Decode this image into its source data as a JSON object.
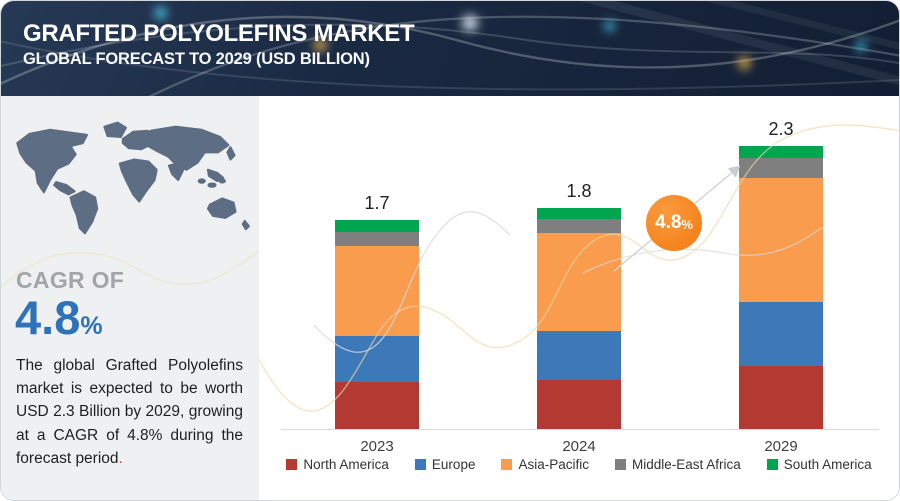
{
  "header": {
    "title": "GRAFTED POLYOLEFINS MARKET",
    "subtitle": "GLOBAL FORECAST TO 2029 (USD BILLION)"
  },
  "sidebar": {
    "cagr_label": "CAGR OF",
    "cagr_value": "4.8",
    "cagr_unit": "%",
    "description": "The global Grafted Polyolefins market is expected to be worth USD 2.3 Billion by 2029, growing at a CAGR of 4.8% during the forecast period",
    "description_end_mark": "."
  },
  "badge": {
    "value": "4.8",
    "unit": "%"
  },
  "chart_data": {
    "type": "bar",
    "stacked": true,
    "title": "Grafted Polyolefins Market, Global Forecast to 2029",
    "unit": "USD Billion",
    "categories": [
      "2023",
      "2024",
      "2029"
    ],
    "totals": [
      1.7,
      1.8,
      2.3
    ],
    "series": [
      {
        "name": "North America",
        "color": "#b23a32",
        "values": [
          0.38,
          0.4,
          0.51
        ]
      },
      {
        "name": "Europe",
        "color": "#3d79b8",
        "values": [
          0.38,
          0.4,
          0.52
        ]
      },
      {
        "name": "Asia-Pacific",
        "color": "#f99c4e",
        "values": [
          0.73,
          0.8,
          1.01
        ]
      },
      {
        "name": "Middle-East Africa",
        "color": "#7f7f7f",
        "values": [
          0.11,
          0.11,
          0.16
        ]
      },
      {
        "name": "South America",
        "color": "#00a64f",
        "values": [
          0.1,
          0.09,
          0.1
        ]
      }
    ],
    "annotations": [
      {
        "text": "4.8%"
      }
    ],
    "legend_position": "bottom",
    "grid": false,
    "value_labels": "totals shown above each bar"
  },
  "theme": {
    "header_bg": "#17243c",
    "sidebar_bg": "#eef0f2",
    "accent_blue": "#2e73b8",
    "badge_orange": "#f6831d",
    "map_fill": "#5d6d83",
    "axis_line": "#d9d9d9",
    "text_dark": "#1f1f1f",
    "muted_gray": "#a1a5aa"
  }
}
